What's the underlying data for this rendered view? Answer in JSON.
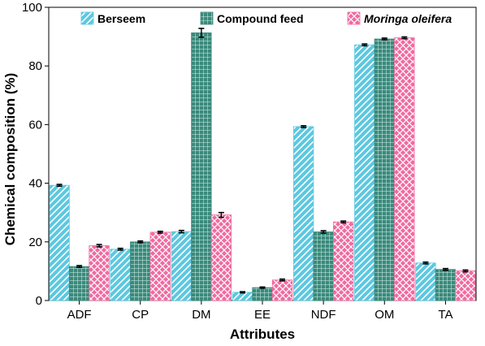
{
  "chart_data": {
    "type": "bar",
    "title": "",
    "xlabel": "Attributes",
    "ylabel": "Chemical composition (%)",
    "ylim": [
      0,
      100
    ],
    "yticks": [
      0,
      20,
      40,
      60,
      80,
      100
    ],
    "grid": false,
    "legend_position": "top",
    "categories": [
      "ADF",
      "CP",
      "DM",
      "EE",
      "NDF",
      "OM",
      "TA"
    ],
    "series": [
      {
        "name": "Berseem",
        "italic": false,
        "color": "#5cc8e0",
        "pattern": "diagonal-stripes",
        "values": [
          39.3,
          17.5,
          23.5,
          2.8,
          59.3,
          87.2,
          12.8
        ],
        "errors": [
          0.3,
          0.3,
          0.4,
          0.2,
          0.3,
          0.3,
          0.3
        ]
      },
      {
        "name": "Compound feed",
        "italic": false,
        "color": "#3a8a7c",
        "pattern": "dotted-grid",
        "values": [
          11.6,
          20.0,
          91.3,
          4.4,
          23.4,
          89.2,
          10.6
        ],
        "errors": [
          0.3,
          0.3,
          1.5,
          0.2,
          0.4,
          0.3,
          0.3
        ]
      },
      {
        "name": "Moringa oleifera",
        "italic": true,
        "color": "#f06aa0",
        "pattern": "cross-hatch",
        "values": [
          18.7,
          23.3,
          29.2,
          7.0,
          26.8,
          89.6,
          10.1
        ],
        "errors": [
          0.4,
          0.3,
          0.8,
          0.3,
          0.3,
          0.3,
          0.3
        ]
      }
    ]
  }
}
